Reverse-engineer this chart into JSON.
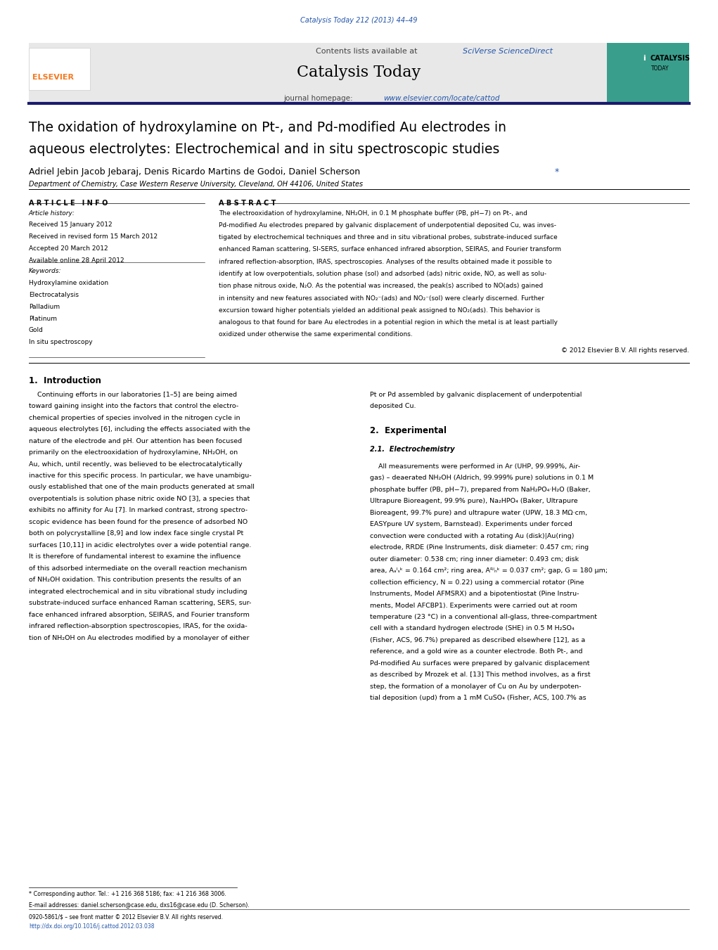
{
  "page_width": 10.21,
  "page_height": 13.51,
  "background_color": "#ffffff",
  "journal_ref_color": "#2255aa",
  "journal_ref": "Catalysis Today 212 (2013) 44–49",
  "header_bg": "#e8e8e8",
  "header_link_color": "#2255aa",
  "journal_name": "Catalysis Today",
  "journal_url_color": "#2255aa",
  "divider_color": "#1a1a6e",
  "title_line1": "The oxidation of hydroxylamine on Pt-, and Pd-modified Au electrodes in",
  "title_line2": "aqueous electrolytes: Electrochemical and in situ spectroscopic studies",
  "authors": "Adriel Jebin Jacob Jebaraj, Denis Ricardo Martins de Godoi, Daniel Scherson",
  "affiliation": "Department of Chemistry, Case Western Reserve University, Cleveland, OH 44106, United States",
  "article_info_header": "A R T I C L E   I N F O",
  "abstract_header": "A B S T R A C T",
  "article_history_label": "Article history:",
  "received": "Received 15 January 2012",
  "received_revised": "Received in revised form 15 March 2012",
  "accepted": "Accepted 20 March 2012",
  "available_online": "Available online 28 April 2012",
  "keywords_label": "Keywords:",
  "keywords": [
    "Hydroxylamine oxidation",
    "Electrocatalysis",
    "Palladium",
    "Platinum",
    "Gold",
    "In situ spectroscopy"
  ],
  "copyright": "© 2012 Elsevier B.V. All rights reserved.",
  "section1_header": "1.  Introduction",
  "section2_header": "2.  Experimental",
  "section21_header": "2.1.  Electrochemistry",
  "footer_note": "* Corresponding author. Tel.: +1 216 368 5186; fax: +1 216 368 3006.",
  "footer_email": "E-mail addresses: daniel.scherson@case.edu, dxs16@case.edu (D. Scherson).",
  "footer_issn": "0920-5861/$ – see front matter © 2012 Elsevier B.V. All rights reserved.",
  "footer_doi": "http://dx.doi.org/10.1016/j.cattod.2012.03.038",
  "teal_color": "#3a9e8c",
  "elsevier_orange": "#f47920"
}
